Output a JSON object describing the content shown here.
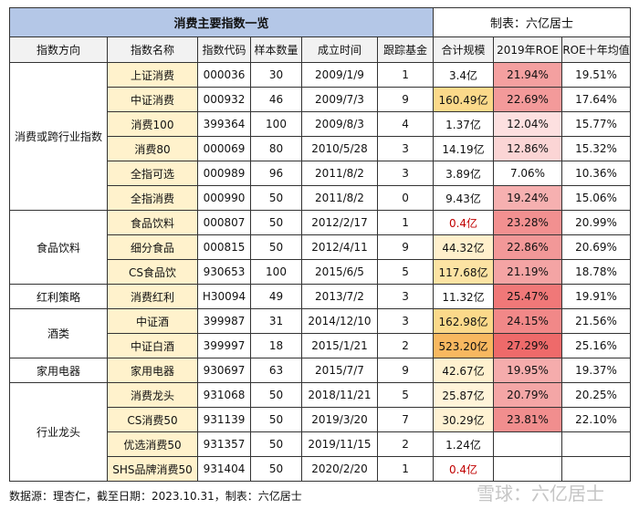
{
  "title": "消费主要指数一览",
  "author": "制表：六亿居士",
  "table": {
    "header": [
      "指数方向",
      "指数名称",
      "指数代码",
      "样本数量",
      "成立时间",
      "跟踪基金",
      "合计规模",
      "2019年ROE",
      "ROE十年均值"
    ],
    "groups": [
      {
        "label": "消费或跨行业指数",
        "rows": [
          [
            "上证消费",
            "000036",
            "30",
            "2009/1/9",
            "1",
            "3.4亿",
            "21.94%",
            "19.51%"
          ],
          [
            "中证消费",
            "000932",
            "46",
            "2009/7/3",
            "9",
            "160.49亿",
            "22.69%",
            "17.64%"
          ],
          [
            "消费100",
            "399364",
            "100",
            "2009/8/3",
            "4",
            "1.37亿",
            "12.04%",
            "15.77%"
          ],
          [
            "消费80",
            "000069",
            "80",
            "2010/5/28",
            "3",
            "14.19亿",
            "12.86%",
            "15.32%"
          ],
          [
            "全指可选",
            "000989",
            "96",
            "2011/8/2",
            "3",
            "3.89亿",
            "7.06%",
            "10.36%"
          ],
          [
            "全指消费",
            "000990",
            "50",
            "2011/8/2",
            "0",
            "9.43亿",
            "19.24%",
            "15.06%"
          ]
        ]
      },
      {
        "label": "食品饮料",
        "rows": [
          [
            "食品饮料",
            "000807",
            "50",
            "2012/2/17",
            "1",
            "0.4亿",
            "23.28%",
            "20.99%"
          ],
          [
            "细分食品",
            "000815",
            "50",
            "2012/4/11",
            "9",
            "44.32亿",
            "22.86%",
            "20.69%"
          ],
          [
            "CS食品饮",
            "930653",
            "100",
            "2015/6/5",
            "5",
            "117.68亿",
            "21.19%",
            "18.78%"
          ]
        ]
      },
      {
        "label": "红利策略",
        "rows": [
          [
            "消费红利",
            "H30094",
            "49",
            "2013/7/2",
            "3",
            "11.32亿",
            "25.47%",
            "19.91%"
          ]
        ]
      },
      {
        "label": "酒类",
        "rows": [
          [
            "中证酒",
            "399987",
            "31",
            "2014/12/10",
            "3",
            "162.98亿",
            "24.15%",
            "21.56%"
          ],
          [
            "中证白酒",
            "399997",
            "18",
            "2015/1/21",
            "2",
            "523.20亿",
            "27.29%",
            "25.16%"
          ]
        ]
      },
      {
        "label": "家用电器",
        "rows": [
          [
            "家用电器",
            "930697",
            "63",
            "2015/7/7",
            "9",
            "42.67亿",
            "19.95%",
            "19.37%"
          ]
        ]
      },
      {
        "label": "行业龙头",
        "rows": [
          [
            "消费龙头",
            "931068",
            "50",
            "2018/11/21",
            "5",
            "25.87亿",
            "20.79%",
            "20.25%"
          ],
          [
            "CS消费50",
            "931139",
            "50",
            "2019/3/20",
            "7",
            "30.29亿",
            "23.81%",
            "22.10%"
          ],
          [
            "优选消费50",
            "931357",
            "50",
            "2019/11/15",
            "2",
            "1.24亿"
          ],
          [
            "SHS品牌消费50",
            "931404",
            "50",
            "2020/2/20",
            "1",
            "0.4亿"
          ]
        ]
      }
    ]
  },
  "footer": "数据源：理杏仁，截至日期：2023.10.31，制表：六亿居士",
  "watermark": "雪球：六亿居士"
}
